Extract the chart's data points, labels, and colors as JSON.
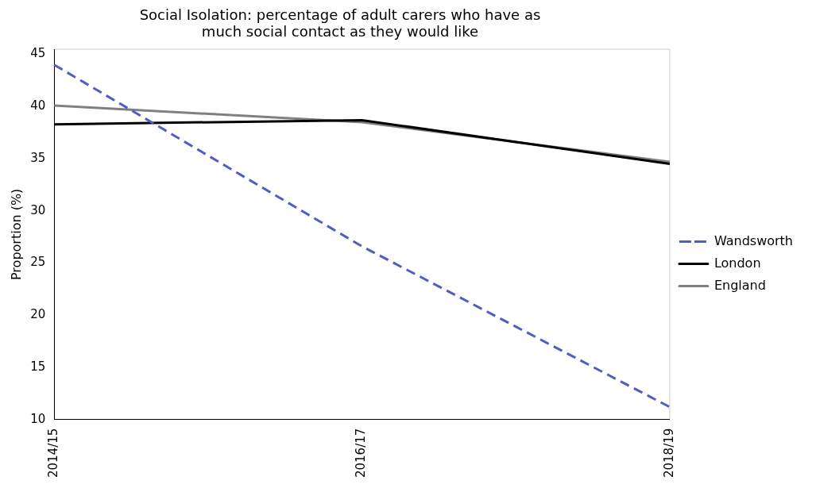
{
  "chart_data": {
    "type": "line",
    "title": "Social Isolation: percentage of adult carers who have as much social contact as they would like",
    "ylabel": "Proportion (%)",
    "categories": [
      "2014/15",
      "2016/17",
      "2018/19"
    ],
    "ylim": [
      10,
      45.5
    ],
    "yticks": [
      10,
      15,
      20,
      25,
      30,
      35,
      40,
      45
    ],
    "grid": false,
    "legend": "right",
    "marker": "none",
    "series": [
      {
        "name": "Wandsworth",
        "color": "#4f5bd5",
        "line_style": "dashed",
        "values": [
          44.0,
          26.6,
          11.2
        ]
      },
      {
        "name": "London",
        "color": "#000000",
        "line_style": "solid",
        "values": [
          38.3,
          38.7,
          34.5
        ]
      },
      {
        "name": "England",
        "color": "#808080",
        "line_style": "solid",
        "values": [
          40.1,
          38.5,
          34.7
        ]
      }
    ]
  }
}
